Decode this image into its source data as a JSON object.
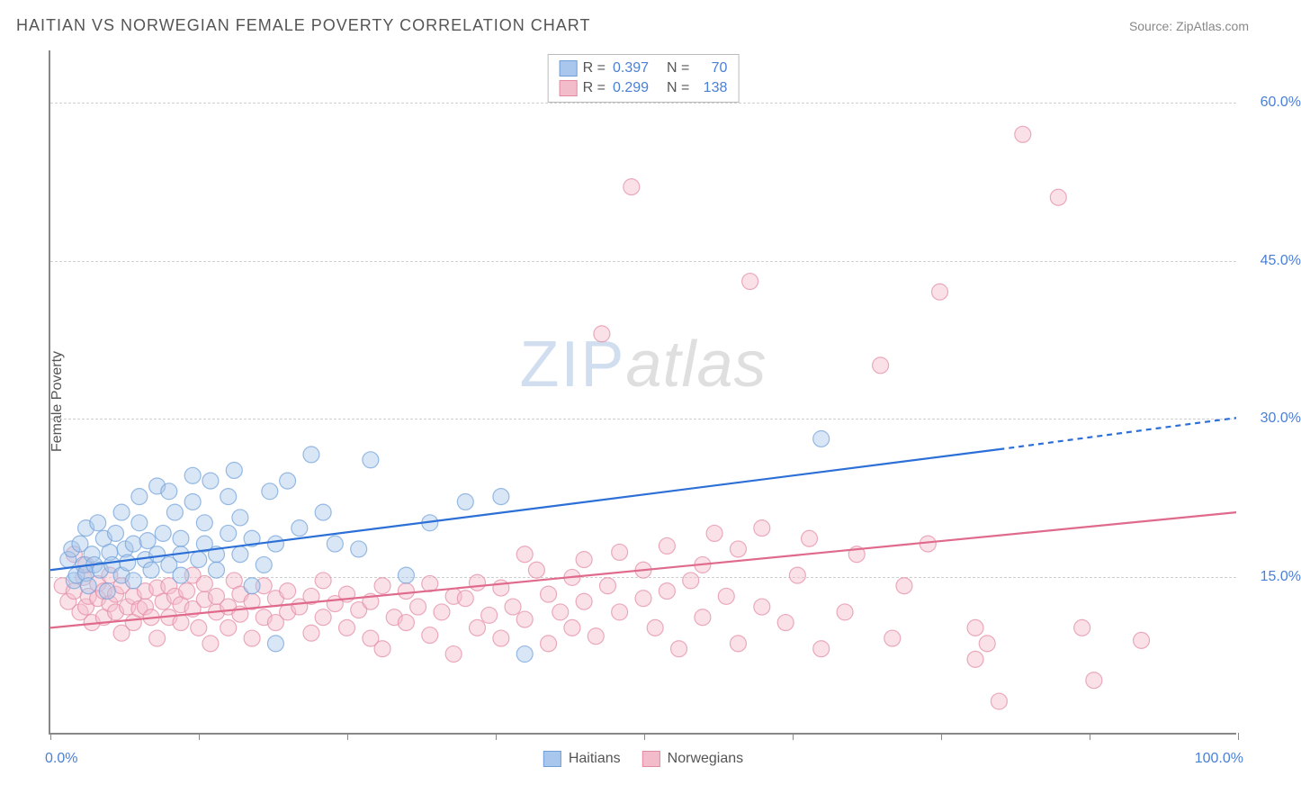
{
  "title": "HAITIAN VS NORWEGIAN FEMALE POVERTY CORRELATION CHART",
  "source": "Source: ZipAtlas.com",
  "ylabel": "Female Poverty",
  "watermark": {
    "part1": "ZIP",
    "part2": "atlas"
  },
  "chart": {
    "type": "scatter",
    "xlim": [
      0,
      100
    ],
    "ylim": [
      0,
      65
    ],
    "xticks": [
      0,
      12.5,
      25,
      37.5,
      50,
      62.5,
      75,
      87.5,
      100
    ],
    "yticks": [
      15,
      30,
      45,
      60
    ],
    "ytick_labels": [
      "15.0%",
      "30.0%",
      "45.0%",
      "60.0%"
    ],
    "x_start_label": "0.0%",
    "x_end_label": "100.0%",
    "grid_color": "#d0d0d0",
    "axis_color": "#888888",
    "background_color": "#ffffff",
    "label_color": "#4a80d6",
    "marker_radius": 9,
    "marker_opacity": 0.45,
    "line_width": 2.2
  },
  "legend_top": [
    {
      "fill": "#a9c7ec",
      "stroke": "#6f9fd8",
      "r_label": "R =",
      "r_value": "0.397",
      "n_label": "N =",
      "n_value": "70"
    },
    {
      "fill": "#f3bccb",
      "stroke": "#e38aa3",
      "r_label": "R =",
      "r_value": "0.299",
      "n_label": "N =",
      "n_value": "138"
    }
  ],
  "legend_bottom": [
    {
      "fill": "#a9c7ec",
      "stroke": "#6f9fd8",
      "label": "Haitians"
    },
    {
      "fill": "#f3bccb",
      "stroke": "#e38aa3",
      "label": "Norwegians"
    }
  ],
  "series": {
    "haitians": {
      "fill": "#a9c7ec",
      "stroke": "#6f9fd8",
      "trend": {
        "stroke": "#2c6fd6",
        "x1": 0,
        "y1": 15.5,
        "x2_solid": 80,
        "y2_solid": 27,
        "x2_dash": 100,
        "y2_dash": 30
      },
      "points": [
        [
          1.5,
          16.5
        ],
        [
          1.8,
          17.5
        ],
        [
          2,
          14.5
        ],
        [
          2.2,
          15
        ],
        [
          2.5,
          18
        ],
        [
          2.8,
          16
        ],
        [
          3,
          15.2
        ],
        [
          3,
          19.5
        ],
        [
          3.2,
          14
        ],
        [
          3.5,
          17
        ],
        [
          3.7,
          16
        ],
        [
          4,
          20
        ],
        [
          4.2,
          15.5
        ],
        [
          4.5,
          18.5
        ],
        [
          4.8,
          13.5
        ],
        [
          5,
          17.2
        ],
        [
          5.2,
          16
        ],
        [
          5.5,
          19
        ],
        [
          6,
          21
        ],
        [
          6,
          15
        ],
        [
          6.3,
          17.5
        ],
        [
          6.5,
          16.2
        ],
        [
          7,
          18
        ],
        [
          7,
          14.5
        ],
        [
          7.5,
          20
        ],
        [
          7.5,
          22.5
        ],
        [
          8,
          16.5
        ],
        [
          8.2,
          18.3
        ],
        [
          8.5,
          15.5
        ],
        [
          9,
          23.5
        ],
        [
          9,
          17
        ],
        [
          9.5,
          19
        ],
        [
          10,
          23
        ],
        [
          10,
          16
        ],
        [
          10.5,
          21
        ],
        [
          11,
          18.5
        ],
        [
          11,
          17
        ],
        [
          11,
          15
        ],
        [
          12,
          22
        ],
        [
          12,
          24.5
        ],
        [
          12.5,
          16.5
        ],
        [
          13,
          20
        ],
        [
          13,
          18
        ],
        [
          13.5,
          24
        ],
        [
          14,
          17
        ],
        [
          14,
          15.5
        ],
        [
          15,
          22.5
        ],
        [
          15,
          19
        ],
        [
          15.5,
          25
        ],
        [
          16,
          17
        ],
        [
          16,
          20.5
        ],
        [
          17,
          18.5
        ],
        [
          17,
          14
        ],
        [
          18,
          16
        ],
        [
          18.5,
          23
        ],
        [
          19,
          8.5
        ],
        [
          19,
          18
        ],
        [
          20,
          24
        ],
        [
          21,
          19.5
        ],
        [
          22,
          26.5
        ],
        [
          23,
          21
        ],
        [
          24,
          18
        ],
        [
          26,
          17.5
        ],
        [
          27,
          26
        ],
        [
          30,
          15
        ],
        [
          32,
          20
        ],
        [
          35,
          22
        ],
        [
          38,
          22.5
        ],
        [
          40,
          7.5
        ],
        [
          65,
          28
        ]
      ]
    },
    "norwegians": {
      "fill": "#f3bccb",
      "stroke": "#e38aa3",
      "trend": {
        "stroke": "#e06a8c",
        "x1": 0,
        "y1": 10,
        "x2_solid": 100,
        "y2_solid": 21,
        "x2_dash": 100,
        "y2_dash": 21
      },
      "points": [
        [
          1,
          14
        ],
        [
          1.5,
          12.5
        ],
        [
          2,
          13.5
        ],
        [
          2,
          17
        ],
        [
          2.5,
          11.5
        ],
        [
          2.8,
          14.8
        ],
        [
          3,
          12
        ],
        [
          3,
          16
        ],
        [
          3.2,
          13
        ],
        [
          3.5,
          10.5
        ],
        [
          4,
          14.2
        ],
        [
          4,
          12.8
        ],
        [
          4.5,
          11
        ],
        [
          4.5,
          13.5
        ],
        [
          5,
          12.3
        ],
        [
          5,
          15
        ],
        [
          5.5,
          11.5
        ],
        [
          5.5,
          13.2
        ],
        [
          6,
          14
        ],
        [
          6,
          9.5
        ],
        [
          6.5,
          12
        ],
        [
          7,
          13
        ],
        [
          7,
          10.5
        ],
        [
          7.5,
          11.8
        ],
        [
          8,
          13.5
        ],
        [
          8,
          12
        ],
        [
          8.5,
          11
        ],
        [
          9,
          13.8
        ],
        [
          9,
          9
        ],
        [
          9.5,
          12.5
        ],
        [
          10,
          14
        ],
        [
          10,
          11
        ],
        [
          10.5,
          13
        ],
        [
          11,
          12.2
        ],
        [
          11,
          10.5
        ],
        [
          11.5,
          13.5
        ],
        [
          12,
          15
        ],
        [
          12,
          11.8
        ],
        [
          12.5,
          10
        ],
        [
          13,
          12.7
        ],
        [
          13,
          14.2
        ],
        [
          13.5,
          8.5
        ],
        [
          14,
          11.5
        ],
        [
          14,
          13
        ],
        [
          15,
          12
        ],
        [
          15,
          10
        ],
        [
          15.5,
          14.5
        ],
        [
          16,
          11.3
        ],
        [
          16,
          13.2
        ],
        [
          17,
          12.5
        ],
        [
          17,
          9
        ],
        [
          18,
          11
        ],
        [
          18,
          14
        ],
        [
          19,
          12.8
        ],
        [
          19,
          10.5
        ],
        [
          20,
          13.5
        ],
        [
          20,
          11.5
        ],
        [
          21,
          12
        ],
        [
          22,
          9.5
        ],
        [
          22,
          13
        ],
        [
          23,
          11
        ],
        [
          23,
          14.5
        ],
        [
          24,
          12.3
        ],
        [
          25,
          10
        ],
        [
          25,
          13.2
        ],
        [
          26,
          11.7
        ],
        [
          27,
          9
        ],
        [
          27,
          12.5
        ],
        [
          28,
          14
        ],
        [
          28,
          8
        ],
        [
          29,
          11
        ],
        [
          30,
          13.5
        ],
        [
          30,
          10.5
        ],
        [
          31,
          12
        ],
        [
          32,
          14.2
        ],
        [
          32,
          9.3
        ],
        [
          33,
          11.5
        ],
        [
          34,
          13
        ],
        [
          34,
          7.5
        ],
        [
          35,
          12.8
        ],
        [
          36,
          10
        ],
        [
          36,
          14.3
        ],
        [
          37,
          11.2
        ],
        [
          38,
          13.8
        ],
        [
          38,
          9
        ],
        [
          39,
          12
        ],
        [
          40,
          17
        ],
        [
          40,
          10.8
        ],
        [
          41,
          15.5
        ],
        [
          42,
          13.2
        ],
        [
          42,
          8.5
        ],
        [
          43,
          11.5
        ],
        [
          44,
          14.8
        ],
        [
          44,
          10
        ],
        [
          45,
          16.5
        ],
        [
          45,
          12.5
        ],
        [
          46,
          9.2
        ],
        [
          46.5,
          38
        ],
        [
          47,
          14
        ],
        [
          48,
          11.5
        ],
        [
          48,
          17.2
        ],
        [
          49,
          52
        ],
        [
          50,
          12.8
        ],
        [
          50,
          15.5
        ],
        [
          51,
          10
        ],
        [
          52,
          13.5
        ],
        [
          52,
          17.8
        ],
        [
          53,
          8
        ],
        [
          54,
          14.5
        ],
        [
          55,
          16
        ],
        [
          55,
          11
        ],
        [
          56,
          19
        ],
        [
          57,
          13
        ],
        [
          58,
          8.5
        ],
        [
          58,
          17.5
        ],
        [
          59,
          43
        ],
        [
          60,
          12
        ],
        [
          60,
          19.5
        ],
        [
          62,
          10.5
        ],
        [
          63,
          15
        ],
        [
          64,
          18.5
        ],
        [
          65,
          8
        ],
        [
          67,
          11.5
        ],
        [
          68,
          17
        ],
        [
          70,
          35
        ],
        [
          71,
          9
        ],
        [
          72,
          14
        ],
        [
          74,
          18
        ],
        [
          75,
          42
        ],
        [
          78,
          7
        ],
        [
          78,
          10
        ],
        [
          79,
          8.5
        ],
        [
          80,
          3
        ],
        [
          82,
          57
        ],
        [
          85,
          51
        ],
        [
          87,
          10
        ],
        [
          88,
          5
        ],
        [
          92,
          8.8
        ]
      ]
    }
  }
}
